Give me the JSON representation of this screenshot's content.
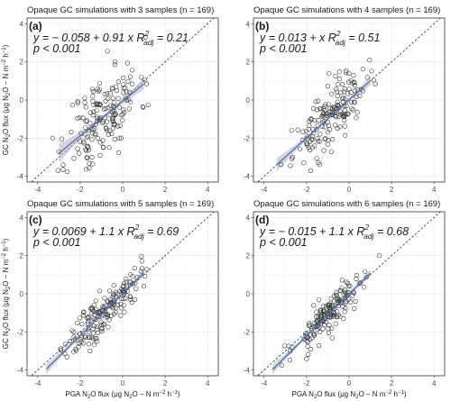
{
  "figure": {
    "x_axis_label": {
      "pre": "PGA N",
      "sub1": "2",
      "mid": "O flux (μg N",
      "sub2": "2",
      "post": "O − N m",
      "sup1": "−2",
      "end": " h",
      "sup2": "−1",
      "close": ")"
    },
    "y_axis_label": {
      "pre": "GC N",
      "sub1": "2",
      "mid": "O flux (μg N",
      "sub2": "2",
      "post": "O − N m",
      "sup1": "−2",
      "end": " h",
      "sup2": "−1",
      "close": ")"
    }
  },
  "colors": {
    "fit_line": "#4a6fd1",
    "ribbon": "#b3b3b3",
    "identity_line": "#333333",
    "points": "#333333"
  },
  "chart_data": [
    {
      "type": "scatter",
      "tag": "(a)",
      "title": "Opaque GC simulations with 3 samples (n = 169)",
      "equation": {
        "text": "y = − 0.058 + 0.91  x",
        "r2_label": "R",
        "r2_sup": "2",
        "r2_sub": "adj",
        "r2_value": " = 0.21",
        "p_text": "p < 0.001"
      },
      "intercept": -0.058,
      "slope": 0.91,
      "ribbon_half_width": [
        0.5,
        0.1,
        0.3
      ],
      "fit_range": [
        -3.0,
        1.0
      ],
      "spread": 1.2,
      "seed": 11,
      "xlim": [
        -4.5,
        4.5
      ],
      "ylim": [
        -4.3,
        4.3
      ],
      "xticks": [
        -4,
        -2,
        0,
        2,
        4
      ],
      "yticks": [
        -4,
        -2,
        0,
        2,
        4
      ]
    },
    {
      "type": "scatter",
      "tag": "(b)",
      "title": "Opaque GC simulations with 4 samples (n = 169)",
      "equation": {
        "text": "y = 0.013 +  x",
        "r2_label": "R",
        "r2_sup": "2",
        "r2_sub": "adj",
        "r2_value": " = 0.51",
        "p_text": "p < 0.001"
      },
      "intercept": 0.013,
      "slope": 1.0,
      "ribbon_half_width": [
        0.35,
        0.08,
        0.22
      ],
      "fit_range": [
        -3.4,
        1.0
      ],
      "spread": 0.75,
      "seed": 23,
      "xlim": [
        -4.5,
        4.5
      ],
      "ylim": [
        -4.3,
        4.3
      ],
      "xticks": [
        -4,
        -2,
        0,
        2,
        4
      ],
      "yticks": [
        -4,
        -2,
        0,
        2,
        4
      ]
    },
    {
      "type": "scatter",
      "tag": "(c)",
      "title": "Opaque GC simulations with 5 samples (n = 169)",
      "equation": {
        "text": "y = 0.0069 + 1.1  x",
        "r2_label": "R",
        "r2_sup": "2",
        "r2_sub": "adj",
        "r2_value": " = 0.69",
        "p_text": "p < 0.001"
      },
      "intercept": 0.0069,
      "slope": 1.1,
      "ribbon_half_width": [
        0.25,
        0.06,
        0.18
      ],
      "fit_range": [
        -3.6,
        1.0
      ],
      "spread": 0.55,
      "seed": 37,
      "xlim": [
        -4.5,
        4.5
      ],
      "ylim": [
        -4.3,
        4.3
      ],
      "xticks": [
        -4,
        -2,
        0,
        2,
        4
      ],
      "yticks": [
        -4,
        -2,
        0,
        2,
        4
      ]
    },
    {
      "type": "scatter",
      "tag": "(d)",
      "title": "Opaque GC simulations with 6 samples (n = 169)",
      "equation": {
        "text": "y = − 0.015 + 1.1  x",
        "r2_label": "R",
        "r2_sup": "2",
        "r2_sub": "adj",
        "r2_value": " = 0.68",
        "p_text": "p < 0.001"
      },
      "intercept": -0.015,
      "slope": 1.1,
      "ribbon_half_width": [
        0.25,
        0.06,
        0.18
      ],
      "fit_range": [
        -3.6,
        1.0
      ],
      "spread": 0.5,
      "seed": 53,
      "xlim": [
        -4.5,
        4.5
      ],
      "ylim": [
        -4.3,
        4.3
      ],
      "xticks": [
        -4,
        -2,
        0,
        2,
        4
      ],
      "yticks": [
        -4,
        -2,
        0,
        2,
        4
      ]
    }
  ]
}
